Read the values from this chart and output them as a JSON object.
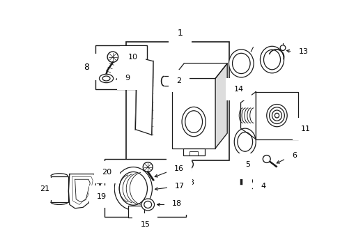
{
  "bg_color": "#ffffff",
  "line_color": "#1a1a1a",
  "fig_width": 4.89,
  "fig_height": 3.6,
  "dpi": 100,
  "label_fs": 8.0,
  "lw": 0.9
}
